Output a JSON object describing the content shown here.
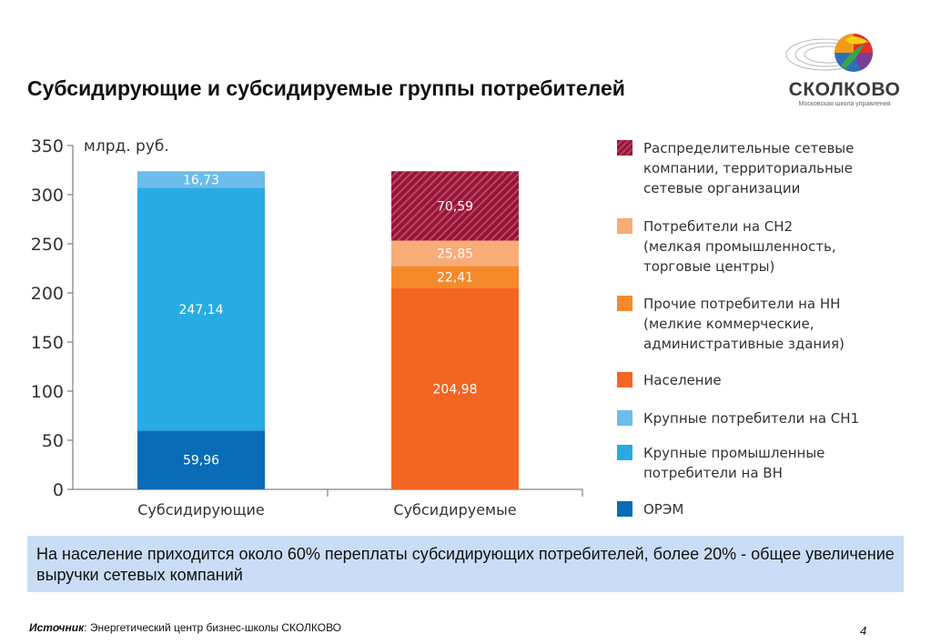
{
  "title": "Субсидирующие и субсидируемые группы потребителей",
  "logo": {
    "name": "СКОЛКОВО",
    "tagline": "Московская школа управления"
  },
  "colors": {
    "orem": "#0a6cb6",
    "large_vn": "#28abe3",
    "large_sn1": "#6bbdea",
    "population": "#f26522",
    "other_nn": "#f58a2c",
    "sn2": "#f8ac78",
    "grid_companies": "#a3193f"
  },
  "chart_data": {
    "type": "bar",
    "stacked": true,
    "unit_label": "млрд. руб.",
    "categories": [
      "Субсидирующие",
      "Субсидируемые"
    ],
    "ylim": [
      0,
      350
    ],
    "yticks": [
      0,
      50,
      100,
      150,
      200,
      250,
      300,
      350
    ],
    "series": [
      {
        "name": "ОРЭМ",
        "key": "orem",
        "values": [
          59.96,
          null
        ],
        "labels": [
          "59,96",
          ""
        ]
      },
      {
        "name": "Крупные промышленные потребители на ВН",
        "key": "large_vn",
        "values": [
          247.14,
          null
        ],
        "labels": [
          "247,14",
          ""
        ]
      },
      {
        "name": "Крупные потребители на СН1",
        "key": "large_sn1",
        "values": [
          16.73,
          null
        ],
        "labels": [
          "16,73",
          ""
        ]
      },
      {
        "name": "Население",
        "key": "population",
        "values": [
          null,
          204.98
        ],
        "labels": [
          "",
          "204,98"
        ]
      },
      {
        "name": "Прочие потребители на НН (мелкие коммерческие, административные здания)",
        "key": "other_nn",
        "values": [
          null,
          22.41
        ],
        "labels": [
          "",
          "22,41"
        ]
      },
      {
        "name": "Потребители на СН2 (мелкая промышленность, торговые центры)",
        "key": "sn2",
        "values": [
          null,
          25.85
        ],
        "labels": [
          "",
          "25,85"
        ]
      },
      {
        "name": "Распределительные сетевые компании, территориальные сетевые организации",
        "key": "grid_companies",
        "values": [
          null,
          70.59
        ],
        "labels": [
          "",
          "70,59"
        ],
        "pattern": "hatched"
      }
    ],
    "legend_position": "right"
  },
  "legend": [
    {
      "key": "grid_companies",
      "text": "Распределительные сетевые\nкомпании, территориальные\nсетевые организации",
      "pattern": "hatched"
    },
    {
      "key": "sn2",
      "text": "Потребители на СН2\n(мелкая промышленность,\nторговые центры)"
    },
    {
      "key": "other_nn",
      "text": "Прочие потребители на НН\n(мелкие коммерческие,\nадминистративные здания)"
    },
    {
      "key": "population",
      "text": "Население"
    },
    {
      "key": "large_sn1",
      "text": "Крупные потребители на СН1"
    },
    {
      "key": "large_vn",
      "text": "Крупные промышленные\nпотребители на ВН"
    },
    {
      "key": "orem",
      "text": "ОРЭМ"
    }
  ],
  "note": "На население приходится около 60% переплаты субсидирующих потребителей, более 20% - общее увеличение выручки сетевых компаний",
  "source": {
    "label": "Источник",
    "text": ": Энергетический центр бизнес-школы СКОЛКОВО"
  },
  "page_number": "4"
}
